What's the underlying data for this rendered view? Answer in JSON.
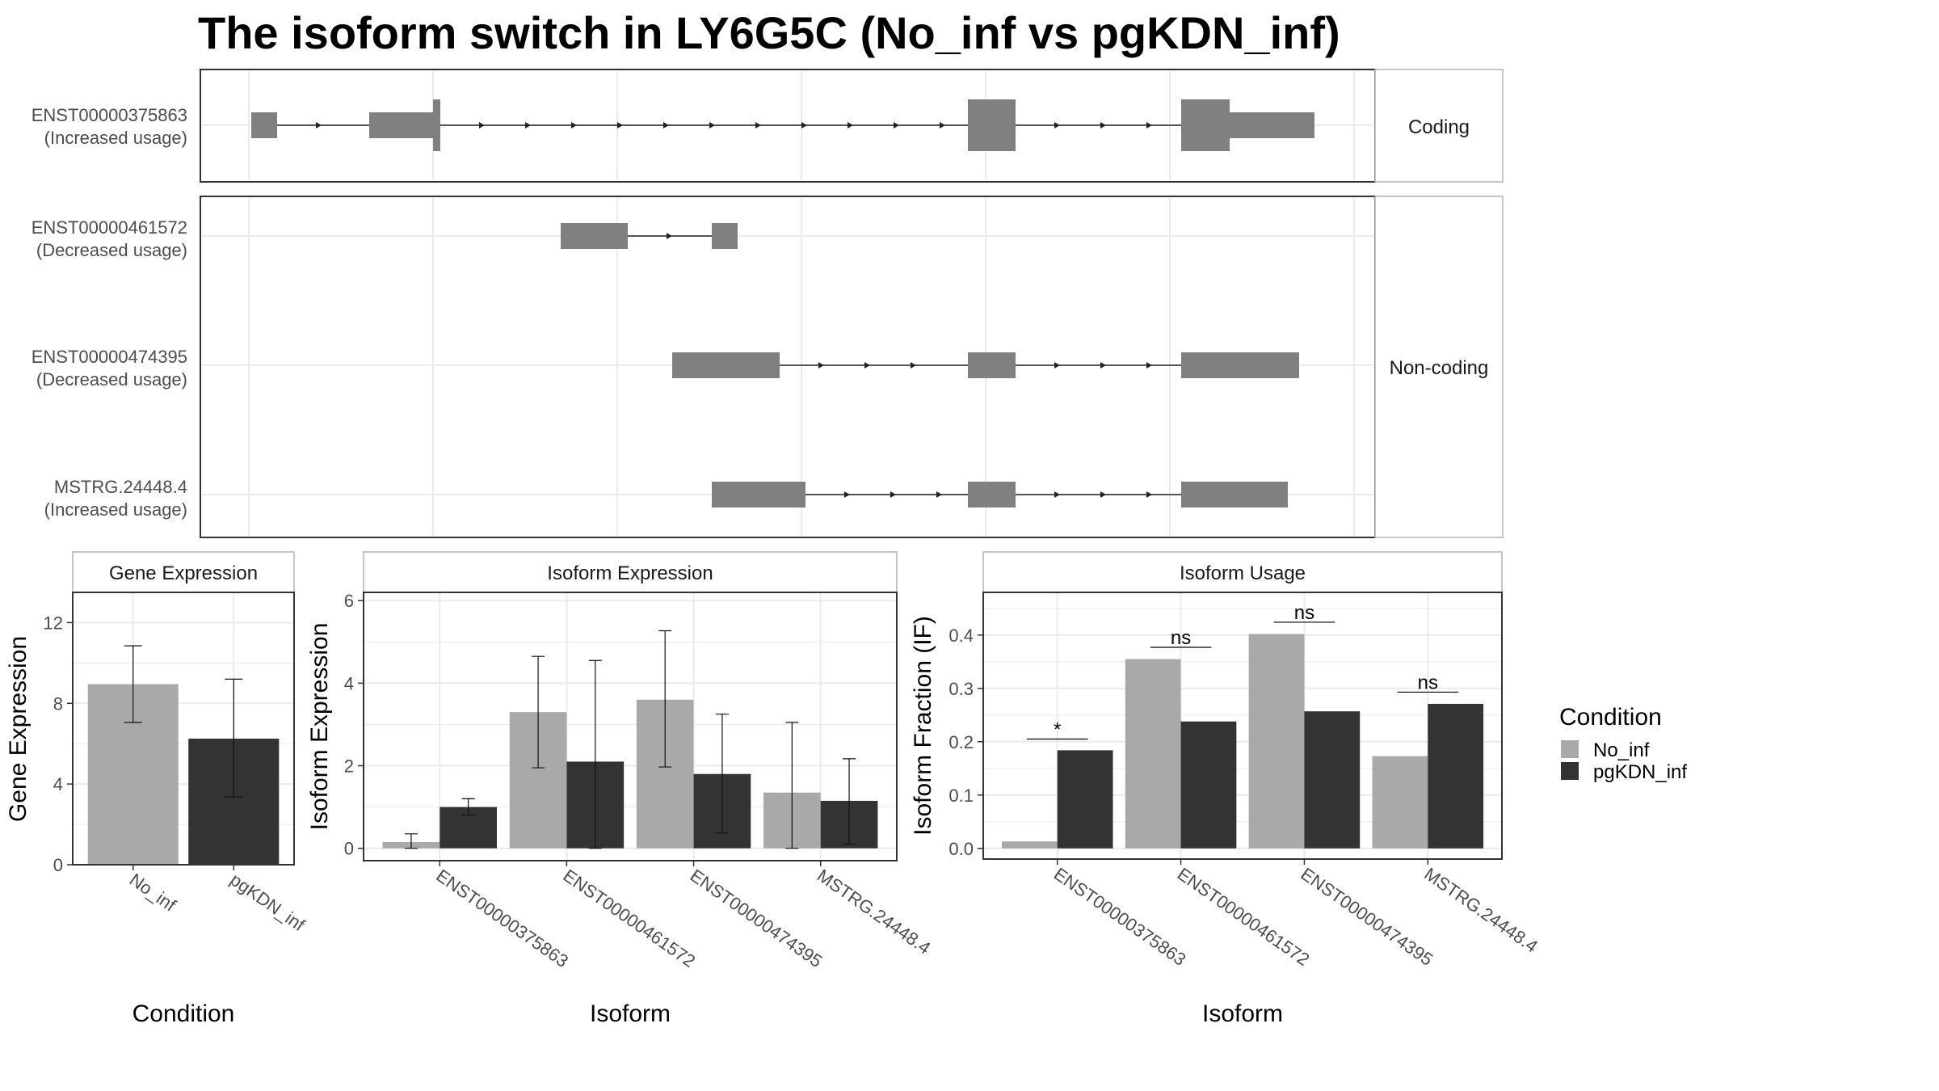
{
  "title": "The isoform switch in LY6G5C (No_inf vs pgKDN_inf)",
  "colors": {
    "no_inf": "#a9a9a9",
    "pgkdn_inf": "#333333",
    "exon": "#808080",
    "panel_border": "#333333",
    "grid": "#ebebeb"
  },
  "legend": {
    "title": "Condition",
    "items": [
      {
        "label": "No_inf",
        "color": "#a9a9a9"
      },
      {
        "label": "pgKDN_inf",
        "color": "#333333"
      }
    ]
  },
  "transcripts": {
    "strips": {
      "coding": "Coding",
      "noncoding": "Non-coding"
    },
    "rows": [
      {
        "id": "ENST00000375863",
        "usage": "(Increased usage)",
        "group": "coding"
      },
      {
        "id": "ENST00000461572",
        "usage": "(Decreased usage)",
        "group": "noncoding"
      },
      {
        "id": "ENST00000474395",
        "usage": "(Decreased usage)",
        "group": "noncoding"
      },
      {
        "id": "MSTRG.24448.4",
        "usage": "(Increased usage)",
        "group": "noncoding"
      }
    ]
  },
  "chart_data": [
    {
      "type": "bar",
      "title": "Gene Expression",
      "xlabel": "Condition",
      "ylabel": "Gene Expression",
      "categories": [
        "No_inf",
        "pgKDN_inf"
      ],
      "values": [
        8.95,
        6.25
      ],
      "errors": [
        [
          7.05,
          10.85
        ],
        [
          3.35,
          9.2
        ]
      ],
      "ylim": [
        0,
        13.5
      ],
      "yticks": [
        0,
        4,
        8,
        12
      ]
    },
    {
      "type": "bar",
      "title": "Isoform Expression",
      "xlabel": "Isoform",
      "ylabel": "Isoform Expression",
      "categories": [
        "ENST00000375863",
        "ENST00000461572",
        "ENST00000474395",
        "MSTRG.24448.4"
      ],
      "series": [
        {
          "name": "No_inf",
          "values": [
            0.15,
            3.3,
            3.6,
            1.35
          ],
          "errors": [
            [
              0.0,
              0.35
            ],
            [
              1.95,
              4.65
            ],
            [
              1.97,
              5.27
            ],
            [
              0.0,
              3.05
            ]
          ]
        },
        {
          "name": "pgKDN_inf",
          "values": [
            1.0,
            2.1,
            1.8,
            1.15
          ],
          "errors": [
            [
              0.8,
              1.2
            ],
            [
              0.0,
              4.55
            ],
            [
              0.37,
              3.25
            ],
            [
              0.1,
              2.17
            ]
          ]
        }
      ],
      "ylim": [
        -0.3,
        6.2
      ],
      "yticks": [
        0,
        2,
        4,
        6
      ]
    },
    {
      "type": "bar",
      "title": "Isoform Usage",
      "xlabel": "Isoform",
      "ylabel": "Isoform Fraction (IF)",
      "categories": [
        "ENST00000375863",
        "ENST00000461572",
        "ENST00000474395",
        "MSTRG.24448.4"
      ],
      "series": [
        {
          "name": "No_inf",
          "values": [
            0.013,
            0.355,
            0.402,
            0.173
          ]
        },
        {
          "name": "pgKDN_inf",
          "values": [
            0.184,
            0.238,
            0.257,
            0.271
          ]
        }
      ],
      "significance": [
        "*",
        "ns",
        "ns",
        "ns"
      ],
      "significance_level": [
        0.205,
        0.377,
        0.424,
        0.293
      ],
      "ylim": [
        -0.02,
        0.48
      ],
      "yticks": [
        0.0,
        0.1,
        0.2,
        0.3,
        0.4
      ]
    }
  ]
}
